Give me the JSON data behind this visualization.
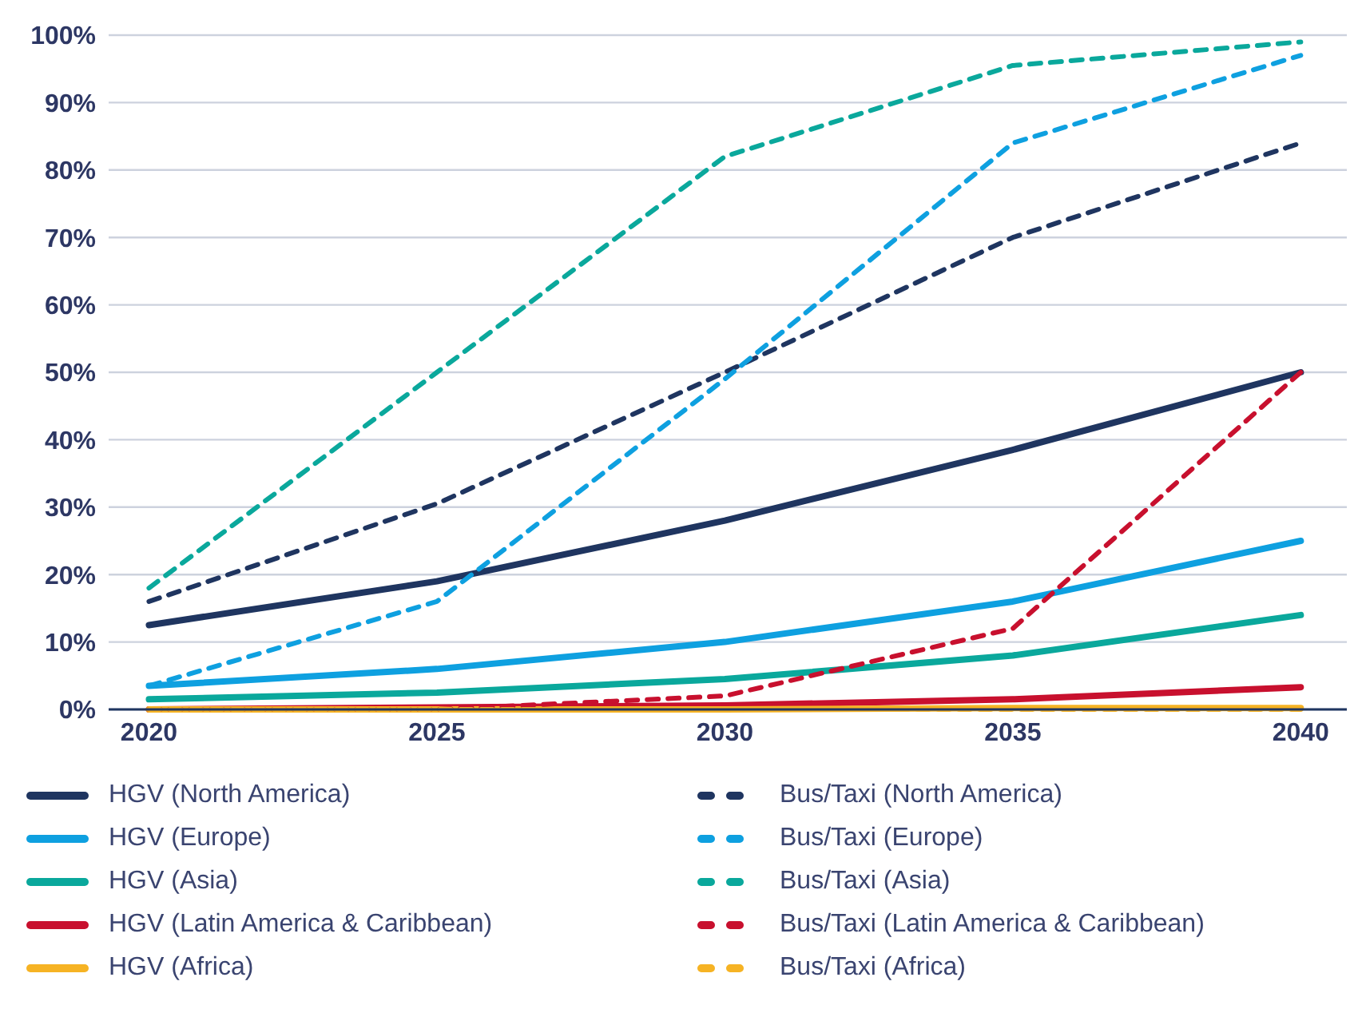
{
  "chart_data": {
    "type": "line",
    "x": [
      2020,
      2025,
      2030,
      2035,
      2040
    ],
    "xlim": [
      2019.3,
      2040.8
    ],
    "xticks": [
      2020,
      2025,
      2030,
      2035,
      2040
    ],
    "ylim": [
      0,
      100
    ],
    "yticks": [
      {
        "value": 0,
        "label": "0%"
      },
      {
        "value": 10,
        "label": "10%"
      },
      {
        "value": 20,
        "label": "20%"
      },
      {
        "value": 30,
        "label": "30%"
      },
      {
        "value": 40,
        "label": "40%"
      },
      {
        "value": 50,
        "label": "50%"
      },
      {
        "value": 60,
        "label": "60%"
      },
      {
        "value": 70,
        "label": "70%"
      },
      {
        "value": 80,
        "label": "80%"
      },
      {
        "value": 90,
        "label": "90%"
      },
      {
        "value": 100,
        "label": "100%"
      }
    ],
    "grid": "y",
    "legend": "bottom",
    "marker": "none",
    "series": [
      {
        "name": "HGV (North America)",
        "color": "#1f3560",
        "line_style": "solid",
        "values": [
          12.5,
          19,
          28,
          38.5,
          50
        ]
      },
      {
        "name": "HGV (Europe)",
        "color": "#0ea0e0",
        "line_style": "solid",
        "values": [
          3.5,
          6,
          10,
          16,
          25
        ]
      },
      {
        "name": "HGV (Asia)",
        "color": "#0aa89c",
        "line_style": "solid",
        "values": [
          1.5,
          2.5,
          4.5,
          8,
          14
        ]
      },
      {
        "name": "HGV (Latin America & Caribbean)",
        "color": "#c8102e",
        "line_style": "solid",
        "values": [
          0,
          0.3,
          0.6,
          1.5,
          3.3
        ]
      },
      {
        "name": "HGV (Africa)",
        "color": "#f6b324",
        "line_style": "solid",
        "values": [
          0,
          0,
          0,
          0.2,
          0.2
        ]
      },
      {
        "name": "Bus/Taxi (North America)",
        "color": "#1f3560",
        "line_style": "dashed",
        "values": [
          16,
          30.5,
          50,
          70,
          84
        ]
      },
      {
        "name": "Bus/Taxi (Europe)",
        "color": "#0ea0e0",
        "line_style": "dashed",
        "values": [
          3.5,
          16,
          49,
          84,
          97
        ]
      },
      {
        "name": "Bus/Taxi (Asia)",
        "color": "#0aa89c",
        "line_style": "dashed",
        "values": [
          18,
          50,
          82,
          95.5,
          99
        ]
      },
      {
        "name": "Bus/Taxi (Latin America & Caribbean)",
        "color": "#c8102e",
        "line_style": "dashed",
        "values": [
          0,
          0,
          2,
          12,
          50
        ]
      },
      {
        "name": "Bus/Taxi (Africa)",
        "color": "#f6b324",
        "line_style": "dashed",
        "values": [
          0,
          0,
          0,
          0,
          0
        ]
      }
    ]
  }
}
